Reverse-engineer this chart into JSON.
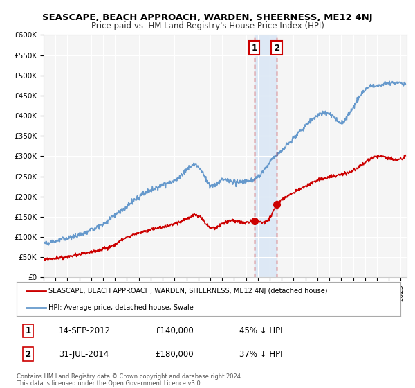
{
  "title": "SEASCAPE, BEACH APPROACH, WARDEN, SHEERNESS, ME12 4NJ",
  "subtitle": "Price paid vs. HM Land Registry's House Price Index (HPI)",
  "legend_entry1": "SEASCAPE, BEACH APPROACH, WARDEN, SHEERNESS, ME12 4NJ (detached house)",
  "legend_entry2": "HPI: Average price, detached house, Swale",
  "annotation1_label": "1",
  "annotation1_date": "14-SEP-2012",
  "annotation1_price": "£140,000",
  "annotation1_hpi": "45% ↓ HPI",
  "annotation2_label": "2",
  "annotation2_date": "31-JUL-2014",
  "annotation2_price": "£180,000",
  "annotation2_hpi": "37% ↓ HPI",
  "footer": "Contains HM Land Registry data © Crown copyright and database right 2024.\nThis data is licensed under the Open Government Licence v3.0.",
  "hpi_color": "#6699cc",
  "price_color": "#cc0000",
  "highlight_color": "#dde8f5",
  "annotation_color": "#cc0000",
  "background_color": "#f5f5f5",
  "ylim": [
    0,
    600000
  ],
  "yticks": [
    0,
    50000,
    100000,
    150000,
    200000,
    250000,
    300000,
    350000,
    400000,
    450000,
    500000,
    550000,
    600000
  ],
  "ytick_labels": [
    "£0",
    "£50K",
    "£100K",
    "£150K",
    "£200K",
    "£250K",
    "£300K",
    "£350K",
    "£400K",
    "£450K",
    "£500K",
    "£550K",
    "£600K"
  ],
  "xlim_start": 1995.0,
  "xlim_end": 2025.5,
  "event1_x": 2012.708,
  "event1_y": 140000,
  "event2_x": 2014.583,
  "event2_y": 180000,
  "shade_x1": 2012.708,
  "shade_x2": 2014.583,
  "hpi_kx": [
    1995,
    1996,
    1997,
    1998,
    1999,
    2000,
    2001,
    2002,
    2003,
    2004,
    2005,
    2006,
    2007,
    2008,
    2009,
    2010,
    2011,
    2012,
    2013,
    2014,
    2015,
    2016,
    2017,
    2018,
    2019,
    2020,
    2021,
    2022,
    2023,
    2024,
    2025.4
  ],
  "hpi_ky": [
    85000,
    90000,
    97000,
    105000,
    118000,
    132000,
    155000,
    175000,
    200000,
    215000,
    230000,
    240000,
    265000,
    275000,
    228000,
    240000,
    237000,
    238000,
    248000,
    285000,
    315000,
    345000,
    375000,
    400000,
    405000,
    385000,
    420000,
    465000,
    475000,
    480000,
    478000
  ],
  "price_kx": [
    1995,
    1996,
    1997,
    1998,
    1999,
    2000,
    2001,
    2002,
    2003,
    2004,
    2005,
    2006,
    2007,
    2008,
    2009,
    2010,
    2011,
    2012,
    2012.708,
    2013,
    2014,
    2014.583,
    2015,
    2016,
    2017,
    2018,
    2019,
    2020,
    2021,
    2022,
    2023,
    2024,
    2025.4
  ],
  "price_ky": [
    45000,
    48000,
    52000,
    58000,
    63000,
    70000,
    82000,
    98000,
    110000,
    118000,
    125000,
    133000,
    145000,
    152000,
    123000,
    132000,
    140000,
    135000,
    140000,
    138000,
    148000,
    180000,
    192000,
    210000,
    225000,
    240000,
    248000,
    255000,
    265000,
    285000,
    300000,
    295000,
    302000
  ]
}
